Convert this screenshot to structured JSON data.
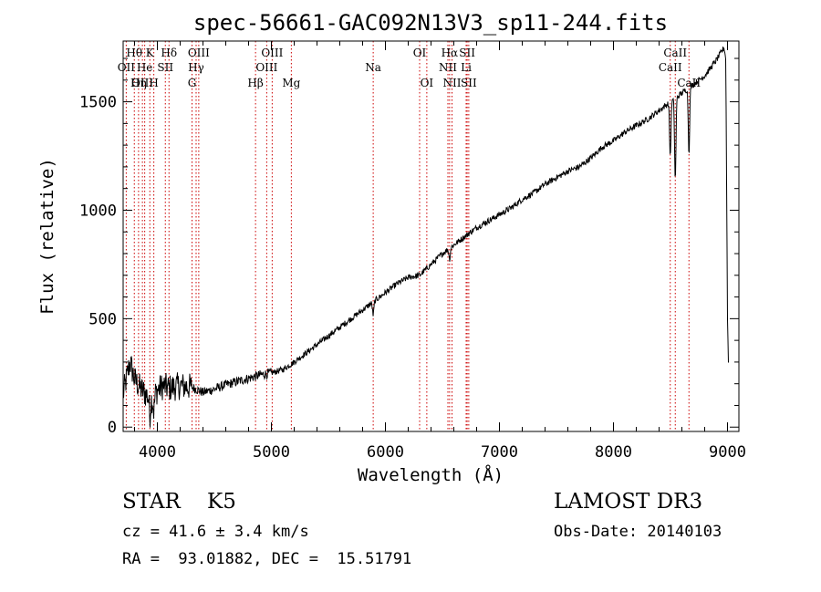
{
  "chart_data": {
    "type": "line",
    "title": "spec-56661-GAC092N13V3_sp11-244.fits",
    "xlabel": "Wavelength (Å)",
    "ylabel": "Flux (relative)",
    "xlim": [
      3700,
      9100
    ],
    "ylim": [
      -20,
      1780
    ],
    "xticks": [
      4000,
      5000,
      6000,
      7000,
      8000,
      9000
    ],
    "yticks": [
      0,
      500,
      1000,
      1500
    ],
    "line_color": "#000000",
    "marker_color": "#cc0000",
    "spectrum_anchors": {
      "x": [
        3700,
        3760,
        3800,
        3850,
        3900,
        3950,
        4000,
        4050,
        4100,
        4200,
        4300,
        4400,
        4500,
        4600,
        4700,
        4800,
        4900,
        5000,
        5100,
        5200,
        5300,
        5400,
        5500,
        5600,
        5700,
        5800,
        5900,
        6000,
        6100,
        6200,
        6300,
        6400,
        6500,
        6600,
        6700,
        6800,
        6900,
        7000,
        7100,
        7200,
        7300,
        7400,
        7500,
        7600,
        7700,
        7800,
        7900,
        8000,
        8100,
        8200,
        8300,
        8400,
        8500,
        8600,
        8700,
        8800,
        8900,
        8970,
        8985,
        9000,
        9020
      ],
      "y": [
        150,
        300,
        220,
        180,
        150,
        130,
        170,
        190,
        180,
        190,
        185,
        160,
        175,
        195,
        210,
        225,
        240,
        250,
        265,
        300,
        340,
        380,
        420,
        460,
        500,
        540,
        580,
        620,
        660,
        690,
        700,
        750,
        800,
        840,
        880,
        920,
        950,
        980,
        1010,
        1050,
        1080,
        1120,
        1150,
        1180,
        1200,
        1240,
        1290,
        1320,
        1360,
        1390,
        1420,
        1460,
        1500,
        1540,
        1580,
        1620,
        1690,
        1750,
        1700,
        500,
        0
      ]
    },
    "lines": [
      {
        "label": "Hθ",
        "wave": 3798,
        "row": 1
      },
      {
        "label": "OII",
        "wave": 3727,
        "row": 2
      },
      {
        "label": "OIII",
        "wave": 3869,
        "row": 3
      },
      {
        "label": "K",
        "wave": 3934,
        "row": 1
      },
      {
        "label": "He",
        "wave": 3889,
        "row": 2
      },
      {
        "label": "Hη",
        "wave": 3835,
        "row": 3
      },
      {
        "label": "H",
        "wave": 3969,
        "row": 3
      },
      {
        "label": "SII",
        "wave": 4070,
        "row": 2
      },
      {
        "label": "Hδ",
        "wave": 4102,
        "row": 1
      },
      {
        "label": "OIII",
        "wave": 4363,
        "row": 1
      },
      {
        "label": "Hγ",
        "wave": 4340,
        "row": 2
      },
      {
        "label": "G",
        "wave": 4304,
        "row": 3
      },
      {
        "label": "Hβ",
        "wave": 4861,
        "row": 3
      },
      {
        "label": "OIII",
        "wave": 5007,
        "row": 1
      },
      {
        "label": "OIII",
        "wave": 4959,
        "row": 2
      },
      {
        "label": "Mg",
        "wave": 5175,
        "row": 3
      },
      {
        "label": "Na",
        "wave": 5893,
        "row": 2
      },
      {
        "label": "OI",
        "wave": 6300,
        "row": 1
      },
      {
        "label": "OI",
        "wave": 6363,
        "row": 3
      },
      {
        "label": "Hα",
        "wave": 6563,
        "row": 1
      },
      {
        "label": "NII",
        "wave": 6548,
        "row": 2
      },
      {
        "label": "NII",
        "wave": 6584,
        "row": 3
      },
      {
        "label": "SII",
        "wave": 6717,
        "row": 1
      },
      {
        "label": "Li",
        "wave": 6708,
        "row": 2
      },
      {
        "label": "SII",
        "wave": 6731,
        "row": 3
      },
      {
        "label": "CaII",
        "wave": 8542,
        "row": 1
      },
      {
        "label": "CaII",
        "wave": 8498,
        "row": 2
      },
      {
        "label": "CaII",
        "wave": 8662,
        "row": 3
      }
    ]
  },
  "info": {
    "class_line": "STAR    K5",
    "cz_line": "cz = 41.6 ± 3.4 km/s",
    "coord_line": "RA =  93.01882, DEC =  15.51791",
    "survey": "LAMOST DR3",
    "obs_date_line": "Obs-Date: 20140103"
  }
}
